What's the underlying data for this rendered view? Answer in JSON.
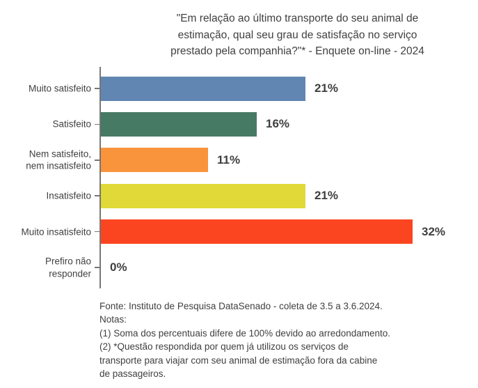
{
  "title": {
    "lines": [
      "\"Em relação ao último transporte do seu animal de",
      "estimação, qual seu grau de satisfação no serviço",
      "prestado pela companhia?\"* - Enquete on-line - 2024"
    ]
  },
  "chart_data": {
    "type": "bar",
    "orientation": "horizontal",
    "title": "\"Em relação ao último transporte do seu animal de estimação, qual seu grau de satisfação no serviço prestado pela companhia?\"* - Enquete on-line - 2024",
    "categories": [
      "Muito satisfeito",
      "Satisfeito",
      "Nem satisfeito,\nnem insatisfeito",
      "Insatisfeito",
      "Muito insatisfeito",
      "Prefiro não\nresponder"
    ],
    "values": [
      21,
      16,
      11,
      21,
      32,
      0
    ],
    "value_labels": [
      "21%",
      "16%",
      "11%",
      "21%",
      "32%",
      "0%"
    ],
    "bar_colors": [
      "#6286B2",
      "#477A64",
      "#F9943D",
      "#E0D937",
      "#FB4521",
      "none"
    ],
    "xlim": [
      0,
      35
    ],
    "grid": false,
    "legend": false,
    "axis_color": "#767676",
    "category_label_color": "#404040",
    "value_label_color": "#3F3F3F"
  },
  "footer": {
    "lines": [
      "Fonte: Instituto de Pesquisa DataSenado - coleta de 3.5 a 3.6.2024.",
      "Notas:",
      "(1) Soma dos percentuais difere de 100% devido ao arredondamento.",
      "(2) *Questão respondida por quem já utilizou os serviços de",
      "transporte para viajar com seu animal de estimação fora da cabine",
      "de passageiros."
    ]
  }
}
